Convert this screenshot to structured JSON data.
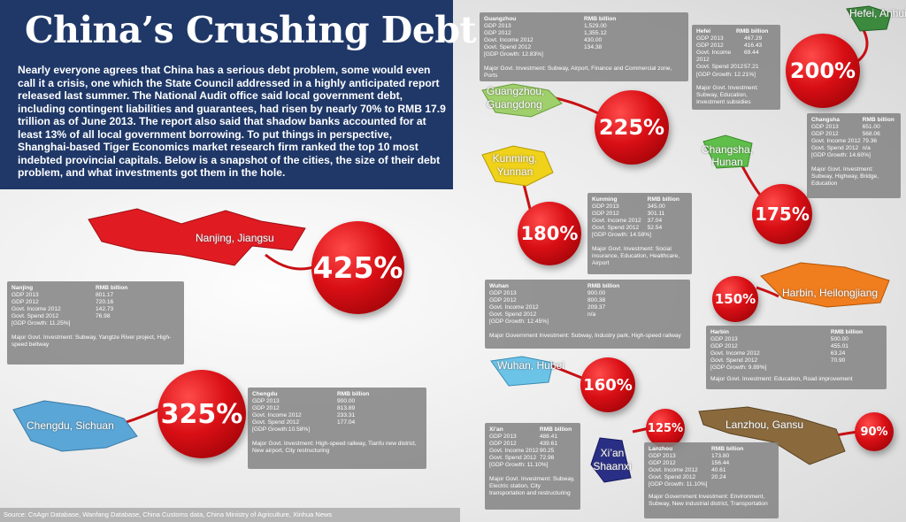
{
  "header": {
    "title": "China’s Crushing Debt",
    "intro": "Nearly everyone agrees that China has a serious debt problem, some would even call it a crisis, one which the State Council addressed in a highly anticipated report released last summer. The National Audit office said local government debt, including contingent liabilities and guarantees, had risen by nearly 70% to RMB 17.9 trillion as of June 2013. The report also said that shadow banks accounted for at least 13% of all local government borrowing. To put things in perspective, Shanghai-based Tiger Economics market research firm ranked the top 10 most indebted provincial capitals. Below is a snapshot of the cities, the size of their debt problem, and what investments got them in the hole."
  },
  "source": "Source: CnAgri Database, Wanfang Database, China Customs data, China Ministry of Agriculture, Xinhua News",
  "colors": {
    "bubble": "#d80f15",
    "header": "#1f3868",
    "panel": "#828282"
  },
  "unit": "RMB billion",
  "cities": {
    "nanjing": {
      "label": "Nanjing, Jiangsu",
      "pct": "425%",
      "name": "Nanjing",
      "gdp2013": "801.17",
      "gdp2012": "720.16",
      "income": "142.73",
      "spend": "76.98",
      "growth": "[GDP Growth: 11.25%]",
      "inv": "Major Govt. Investment: Subway, Yangtze River project, High-speed beltway"
    },
    "chengdu": {
      "label": "Chengdu, Sichuan",
      "pct": "325%",
      "name": "Chengdu",
      "gdp2013": "900.00",
      "gdp2012": "813.89",
      "income": "233.31",
      "spend": "177.04",
      "growth": "[GDP Growth:10.58%]",
      "inv": "Major Govt. Investment: High-speed railway, Tianfu new district, New airport, City restructuring"
    },
    "guangzhou": {
      "label": "Guangzhou, Guangdong",
      "pct": "225%",
      "name": "Guangzhou",
      "gdp2013": "1,529.00",
      "gdp2012": "1,355.12",
      "income": "430.00",
      "spend": "134.38",
      "growth": "[GDP Growth: 12.83%]",
      "inv": "Major Govt. Investment: Subway, Airport, Finance and Commercial zone, Ports"
    },
    "hefei": {
      "label": "Hefei, Anhui",
      "pct": "200%",
      "name": "Hefei",
      "gdp2013": "467.29",
      "gdp2012": "416.43",
      "income": "69.44",
      "spend": "57.21",
      "growth": "[GDP Growth: 12.21%]",
      "inv": "Major Govt. Investment: Subway, Education, Investment subsidies"
    },
    "kunming": {
      "label": "Kunming, Yunnan",
      "pct": "180%",
      "name": "Kunming",
      "gdp2013": "345.00",
      "gdp2012": "301.11",
      "income": "37.04",
      "spend": "52.54",
      "growth": "[GDP Growth: 14.58%]",
      "inv": "Major Govt. Investment: Social insurance, Education, Healthcare, Airport"
    },
    "changsha": {
      "label": "Changsha, Hunan",
      "pct": "175%",
      "name": "Changsha",
      "gdp2013": "651.00",
      "gdp2012": "568.06",
      "income": "79.36",
      "spend": "n/a",
      "growth": "[GDP Growth: 14.60%]",
      "inv": "Major Govt. Investment: Subway, Highway, Bridge, Education"
    },
    "wuhan": {
      "label": "Wuhan, Hubei",
      "pct": "160%",
      "name": "Wuhan",
      "gdp2013": "900.00",
      "gdp2012": "800.38",
      "income": "209.37",
      "spend": "n/a",
      "growth": "[GDP Growth: 12.45%]",
      "inv": "Major Government Investment: Subway, Industry park, High-speed railway"
    },
    "harbin": {
      "label": "Harbin, Heilongjiang",
      "pct": "150%",
      "name": "Harbin",
      "gdp2013": "500.00",
      "gdp2012": "455.01",
      "income": "63.24",
      "spend": "70.90",
      "growth": "[GDP Growth: 9.89%]",
      "inv": "Major Govt. Investment: Education, Road improvement"
    },
    "xian": {
      "label": "Xi’an Shaanxi",
      "pct": "125%",
      "name": "Xi’an",
      "gdp2013": "488.41",
      "gdp2012": "439.61",
      "income": "90.25",
      "spend": "72.98",
      "growth": "[GDP Growth: 11.10%]",
      "inv": "Major Govt. Investment: Subway, Electric station, City transportation and restructuring"
    },
    "lanzhou": {
      "label": "Lanzhou, Gansu",
      "pct": "90%",
      "name": "Lanzhou",
      "gdp2013": "173.80",
      "gdp2012": "156.44",
      "income": "40.61",
      "spend": "20.24",
      "growth": "[GDP Growth: 11.10%]",
      "inv": "Major Government Investment: Environment, Subway, New industrial district, Transportation"
    }
  },
  "row_labels": {
    "gdp2013": "GDP 2013",
    "gdp2012": "GDP 2012",
    "income": "Govt. Income 2012",
    "spend": "Govt. Spend 2012"
  }
}
